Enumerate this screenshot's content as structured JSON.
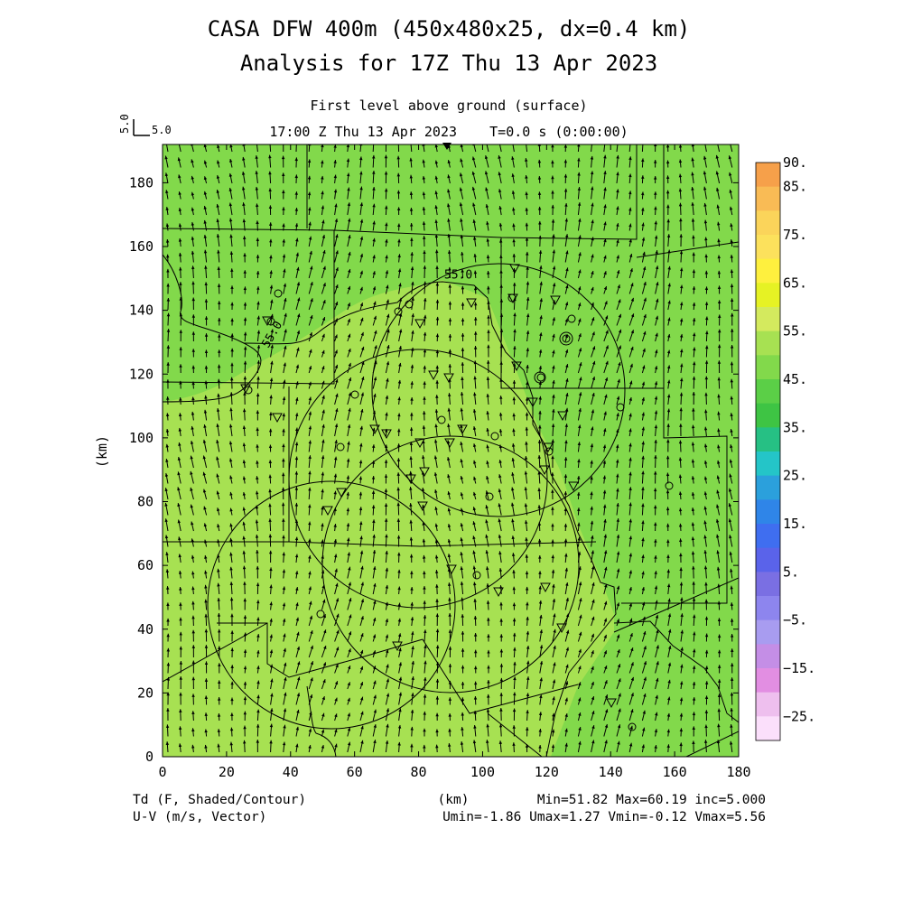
{
  "header": {
    "title_line1": "CASA DFW 400m (450x480x25, dx=0.4 km)",
    "title_line2": "Analysis for 17Z Thu 13 Apr 2023",
    "subtitle_line1": "First level above ground (surface)",
    "subtitle_line2": "17:00 Z Thu 13 Apr 2023    T=0.0 s (0:00:00)"
  },
  "vector_key": {
    "rotated_label": "5.0",
    "label": "5.0"
  },
  "chart_data": {
    "type": "heatmap",
    "xlabel": "(km)",
    "ylabel": "(km)",
    "xlim": [
      0,
      180
    ],
    "ylim": [
      0,
      192
    ],
    "x_ticks": [
      0,
      20,
      40,
      60,
      80,
      100,
      120,
      140,
      160,
      180
    ],
    "y_ticks": [
      0,
      20,
      40,
      60,
      80,
      100,
      120,
      140,
      160,
      180
    ],
    "contour_labels": [
      {
        "text": "55.0",
        "x": 88,
        "y": 150
      },
      {
        "text": "55.0",
        "x": 33,
        "y": 128
      }
    ],
    "colorbar": {
      "levels": [
        90,
        85,
        80,
        75,
        70,
        65,
        60,
        55,
        50,
        45,
        40,
        35,
        30,
        25,
        20,
        15,
        10,
        5,
        0,
        -5,
        -10,
        -15,
        -20,
        -25
      ],
      "labels": [
        "90.",
        "85.",
        "75.",
        "65.",
        "55.",
        "45.",
        "35.",
        "25.",
        "15.",
        "5.",
        "−5.",
        "−15.",
        "−25."
      ],
      "label_values": [
        90,
        85,
        75,
        65,
        55,
        45,
        35,
        25,
        15,
        5,
        -5,
        -15,
        -25
      ],
      "colors": [
        "#f6a04a",
        "#f9bb55",
        "#fbd45a",
        "#fce15c",
        "#fef03e",
        "#e6f224",
        "#d4ea5e",
        "#a7e152",
        "#82d94b",
        "#5bcf47",
        "#3ec444",
        "#26c084",
        "#24c5c8",
        "#2ba0dc",
        "#2f85e8",
        "#3f6ef0",
        "#5a63ea",
        "#7a6fe3",
        "#8d85ee",
        "#a89cf0",
        "#c48ee6",
        "#e28ee2",
        "#eebfee",
        "#fbdffb"
      ]
    },
    "field": {
      "base_color": "#a7e152",
      "low_region_color": "#82d94b",
      "contour_interval": 5.0
    },
    "wind": {
      "reference_vector_ms": 5.0,
      "dominant_direction": "northward"
    }
  },
  "footer": {
    "left_line1": "Td (F, Shaded/Contour)",
    "left_line2": "U-V (m/s, Vector)",
    "center": "(km)",
    "stats_line1": "Min=51.82 Max=60.19 inc=5.000",
    "stats_line2": "Umin=-1.86 Umax=1.27 Vmin=-0.12 Vmax=5.56"
  }
}
